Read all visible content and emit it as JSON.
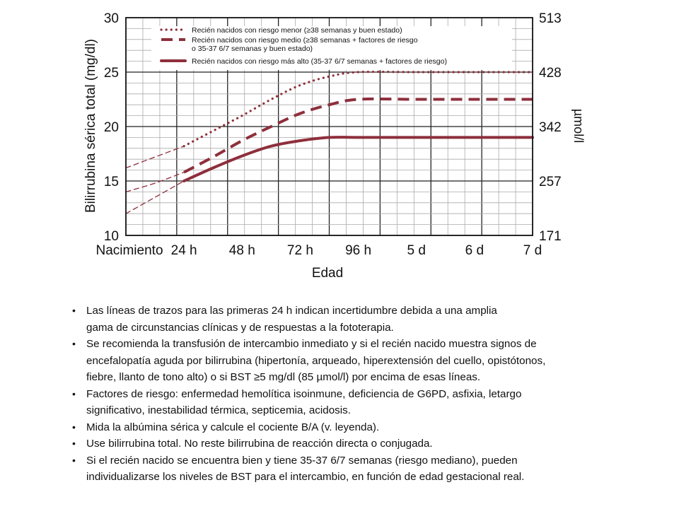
{
  "chart_data": {
    "type": "line",
    "xlabel": "Edad",
    "ylabel": "Bilirrubina sérica total (mg/dl)",
    "ylabel_right": "µmol/l",
    "x_ticks": [
      "Nacimiento",
      "24 h",
      "48 h",
      "72 h",
      "96 h",
      "5 d",
      "6 d",
      "7 d"
    ],
    "xlim": [
      0,
      168
    ],
    "ylim": [
      10,
      30
    ],
    "y_ticks": [
      10,
      15,
      20,
      25,
      30
    ],
    "y_ticks_right": [
      "171",
      "257",
      "342",
      "428",
      "513"
    ],
    "grid": true,
    "legend_position": "top",
    "series": [
      {
        "name": "Recién nacidos con riesgo menor (≥38 semanas y buen estado)",
        "style": "dotted",
        "color": "#8e2f3c",
        "uncertain_x": [
          0,
          24
        ],
        "x": [
          0,
          12,
          24,
          36,
          48,
          60,
          72,
          84,
          96,
          120,
          144,
          168
        ],
        "y": [
          16.2,
          17.2,
          18.2,
          19.6,
          21.0,
          22.5,
          23.8,
          24.6,
          25.0,
          25.0,
          25.0,
          25.0
        ]
      },
      {
        "name": "Recién nacidos con riesgo medio (≥38 semanas + factores de riesgo o 35-37 6/7 semanas y buen estado)",
        "style": "dashed",
        "color": "#8e2f3c",
        "uncertain_x": [
          0,
          24
        ],
        "x": [
          0,
          12,
          24,
          36,
          48,
          60,
          72,
          84,
          96,
          120,
          144,
          168
        ],
        "y": [
          14.0,
          14.8,
          15.8,
          17.2,
          18.7,
          20.0,
          21.2,
          22.0,
          22.5,
          22.5,
          22.5,
          22.5
        ]
      },
      {
        "name": "Recién nacidos con riesgo más alto (35-37 6/7 semanas + factores de riesgo)",
        "style": "solid",
        "color": "#8e2f3c",
        "uncertain_x": [
          0,
          24
        ],
        "x": [
          0,
          12,
          24,
          36,
          48,
          60,
          72,
          84,
          96,
          120,
          144,
          168
        ],
        "y": [
          12.0,
          13.5,
          15.0,
          16.2,
          17.3,
          18.2,
          18.7,
          19.0,
          19.0,
          19.0,
          19.0,
          19.0
        ]
      }
    ]
  },
  "legend": [
    {
      "lines": [
        "Recién nacidos con riesgo menor (≥38 semanas y buen estado)"
      ]
    },
    {
      "lines": [
        "Recién nacidos con riesgo medio (≥38 semanas + factores de riesgo",
        "o 35-37 6/7 semanas y buen estado)"
      ]
    },
    {
      "lines": [
        "Recién nacidos con riesgo más alto (35-37 6/7 semanas + factores de riesgo)"
      ]
    }
  ],
  "notes": [
    {
      "lines": [
        "Las líneas de trazos para las primeras 24 h indican incertidumbre debida a una amplia",
        "gama de circunstancias clínicas y de respuestas a la fototerapia."
      ]
    },
    {
      "lines": [
        "Se recomienda la transfusión de intercambio inmediato y si el recién nacido muestra signos de",
        "encefalopatía aguda por bilirrubina (hipertonía, arqueado, hiperextensión del cuello, opistótonos,",
        "fiebre, llanto de tono alto) o si BST ≥5 mg/dl (85 µmol/l) por encima de esas líneas."
      ]
    },
    {
      "lines": [
        "Factores de riesgo: enfermedad hemolítica isoinmune, deficiencia de G6PD, asfixia, letargo",
        "significativo, inestabilidad térmica, septicemia, acidosis."
      ]
    },
    {
      "lines": [
        "Mida la albúmina sérica y calcule el cociente B/A (v. leyenda)."
      ]
    },
    {
      "lines": [
        "Use bilirrubina total. No reste bilirrubina de reacción directa o conjugada."
      ]
    },
    {
      "lines": [
        "Si el recién nacido se encuentra bien y tiene 35-37 6/7 semanas (riesgo mediano), pueden",
        "individualizarse los niveles de BST para el intercambio, en función de edad gestacional real."
      ]
    }
  ]
}
